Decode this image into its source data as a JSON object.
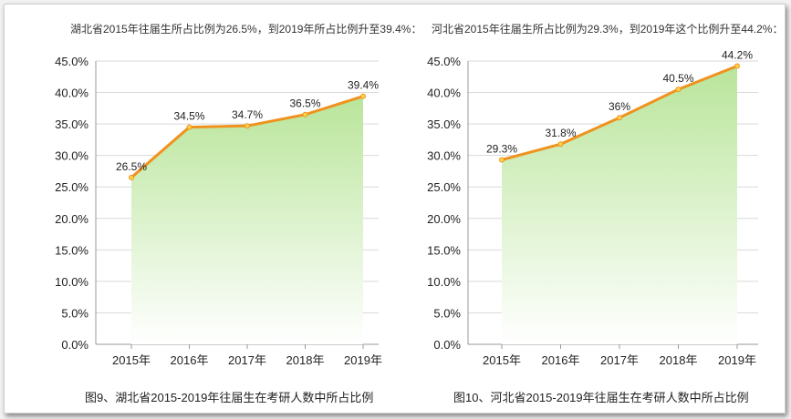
{
  "chart_data": [
    {
      "type": "area",
      "subtitle": "湖北省2015年往届生所占比例为26.5%，到2019年所占比例升至39.4%：",
      "caption": "图9、湖北省2015-2019年往届生在考研人数中所占比例",
      "categories": [
        "2015年",
        "2016年",
        "2017年",
        "2018年",
        "2019年"
      ],
      "values": [
        26.5,
        34.5,
        34.7,
        36.5,
        39.4
      ],
      "data_labels": [
        "26.5%",
        "34.5%",
        "34.7%",
        "36.5%",
        "39.4%"
      ],
      "yticks": [
        "0.0%",
        "5.0%",
        "10.0%",
        "15.0%",
        "20.0%",
        "25.0%",
        "30.0%",
        "35.0%",
        "40.0%",
        "45.0%"
      ],
      "ylim": [
        0,
        45
      ],
      "grid": true,
      "line_color": "#f0921e",
      "fill_top_color": "#b9e59a",
      "fill_bottom_color": "#ffffff"
    },
    {
      "type": "area",
      "subtitle": "河北省2015年往届生所占比例为29.3%，到2019年这个比例升至44.2%：",
      "caption": "图10、河北省2015-2019年往届生在考研人数中所占比例",
      "categories": [
        "2015年",
        "2016年",
        "2017年",
        "2018年",
        "2019年"
      ],
      "values": [
        29.3,
        31.8,
        36,
        40.5,
        44.2
      ],
      "data_labels": [
        "29.3%",
        "31.8%",
        "36%",
        "40.5%",
        "44.2%"
      ],
      "yticks": [
        "0.0%",
        "5.0%",
        "10.0%",
        "15.0%",
        "20.0%",
        "25.0%",
        "30.0%",
        "35.0%",
        "40.0%",
        "45.0%"
      ],
      "ylim": [
        0,
        45
      ],
      "grid": true,
      "line_color": "#f0921e",
      "fill_top_color": "#b9e59a",
      "fill_bottom_color": "#ffffff"
    }
  ]
}
